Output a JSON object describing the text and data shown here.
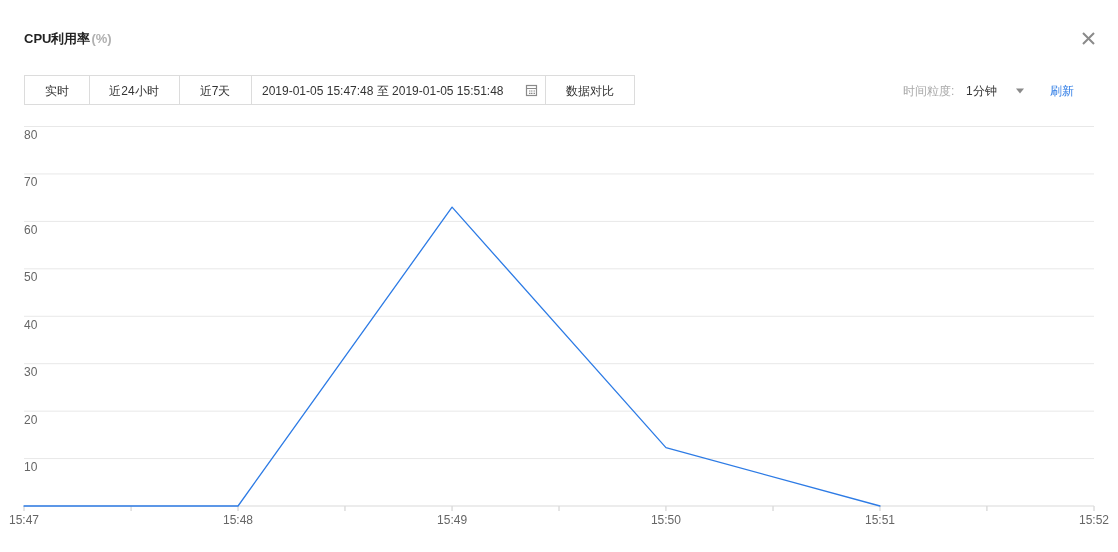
{
  "chart_data": {
    "type": "line",
    "title": "CPU利用率",
    "x": [
      15.78333,
      15.8,
      15.81667,
      15.83333,
      15.85
    ],
    "series": [
      {
        "color": "#2d7be5",
        "values": [
          0,
          0,
          63,
          12.3,
          0
        ]
      }
    ],
    "xlim": [
      15.78333,
      15.86667
    ],
    "xticks": [
      {
        "value": 15.78333,
        "label": "15:47"
      },
      {
        "value": 15.79167,
        "label": null
      },
      {
        "value": 15.8,
        "label": "15:48"
      },
      {
        "value": 15.80833,
        "label": null
      },
      {
        "value": 15.81667,
        "label": "15:49"
      },
      {
        "value": 15.825,
        "label": null
      },
      {
        "value": 15.83333,
        "label": "15:50"
      },
      {
        "value": 15.84167,
        "label": null
      },
      {
        "value": 15.85,
        "label": "15:51"
      },
      {
        "value": 15.85833,
        "label": null
      },
      {
        "value": 15.86667,
        "label": "15:52"
      }
    ],
    "ylim": [
      0,
      80
    ],
    "yticks": [
      10,
      20,
      30,
      40,
      50,
      60,
      70,
      80
    ],
    "grid": "y",
    "line_style": "solid",
    "annotations": [
      "(%)",
      "实时",
      "近24小时",
      "近7天",
      "2019-01-05 15:47:48 至 2019-01-05 15:51:48",
      "数据对比",
      "时间粒度:",
      "1分钟",
      "刷新"
    ]
  }
}
